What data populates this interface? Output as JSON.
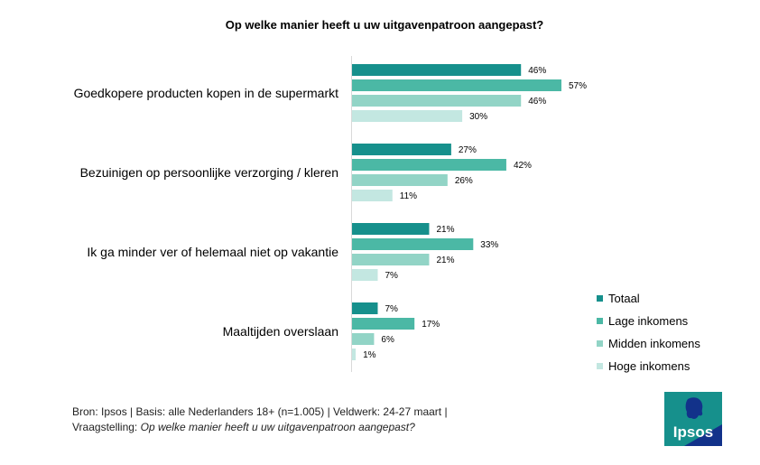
{
  "colors": {
    "totaal": "#16908c",
    "lage": "#4bb8a5",
    "midden": "#92d4c6",
    "hoge": "#c3e7e1"
  },
  "chart_data": {
    "type": "bar",
    "orientation": "horizontal",
    "title": "Op welke manier heeft u uw uitgavenpatroon aangepast?",
    "categories": [
      "Goedkopere producten kopen in de supermarkt",
      "Bezuinigen op persoonlijke verzorging / kleren",
      "Ik ga minder ver of helemaal niet op vakantie",
      "Maaltijden overslaan"
    ],
    "series": [
      {
        "name": "Totaal",
        "values": [
          46,
          27,
          21,
          7
        ]
      },
      {
        "name": "Lage inkomens",
        "values": [
          57,
          42,
          33,
          17
        ]
      },
      {
        "name": "Midden inkomens",
        "values": [
          46,
          26,
          21,
          6
        ]
      },
      {
        "name": "Hoge inkomens",
        "values": [
          30,
          11,
          7,
          1
        ]
      }
    ],
    "value_suffix": "%",
    "xlim": [
      0,
      100
    ],
    "grid": false,
    "legend_position": "bottom-right"
  },
  "footer": {
    "line1": "Bron: Ipsos | Basis: alle Nederlanders 18+ (n=1.005) | Veldwerk: 24-27 maart |",
    "line2_prefix": "Vraagstelling: ",
    "line2_question": "Op welke manier heeft u uw uitgavenpatroon aangepast?"
  },
  "logo": {
    "text": "Ipsos"
  }
}
